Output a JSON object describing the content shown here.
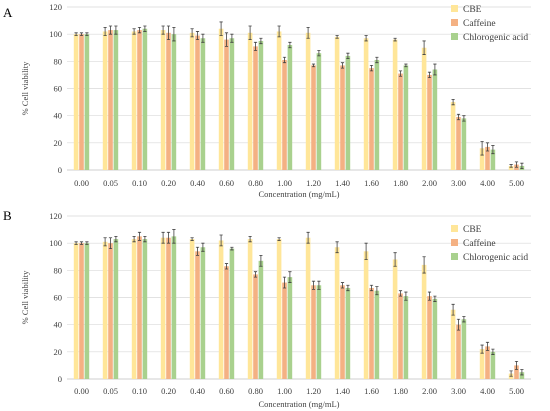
{
  "colors": {
    "CBE": "#ffe699",
    "Caffeine": "#f4b183",
    "Chlorogenic acid": "#a9d18e"
  },
  "chart_data": [
    {
      "panel_label": "A",
      "type": "bar",
      "xlabel": "Concentration (mg/mL)",
      "ylabel": "% Cell viability",
      "ylim": [
        0,
        120
      ],
      "yticks": [
        0,
        20,
        40,
        60,
        80,
        100,
        120
      ],
      "grid": true,
      "legend": "top-right",
      "categories": [
        "0.00",
        "0.05",
        "0.10",
        "0.20",
        "0.40",
        "0.60",
        "0.80",
        "1.00",
        "1.20",
        "1.40",
        "1.60",
        "1.80",
        "2.00",
        "3.00",
        "4.00",
        "5.00"
      ],
      "series": [
        {
          "name": "CBE",
          "values": [
            100,
            102,
            102,
            103,
            101,
            104,
            101,
            102,
            101,
            98,
            97,
            96,
            90,
            50,
            16,
            3
          ],
          "errors": [
            1,
            3,
            2,
            3,
            3,
            5,
            5,
            4,
            4,
            1,
            2,
            1,
            5,
            2,
            5,
            1
          ]
        },
        {
          "name": "Caffeine",
          "values": [
            100,
            103,
            103,
            101,
            99,
            96,
            91,
            81,
            77,
            77,
            75,
            71,
            70,
            39,
            17,
            4
          ],
          "errors": [
            1,
            3,
            2,
            5,
            3,
            5,
            3,
            2,
            1,
            2,
            2,
            2,
            2,
            2,
            3,
            2
          ]
        },
        {
          "name": "Chlorogenic acid",
          "values": [
            100,
            103,
            104,
            100,
            97,
            97,
            95,
            92,
            86,
            84,
            81,
            77,
            74,
            38,
            15,
            3
          ],
          "errors": [
            1,
            3,
            2,
            5,
            3,
            3,
            2,
            2,
            2,
            2,
            2,
            1,
            4,
            2,
            3,
            2
          ]
        }
      ]
    },
    {
      "panel_label": "B",
      "type": "bar",
      "xlabel": "Concentration (mg/mL)",
      "ylabel": "% Cell viability",
      "ylim": [
        0,
        120
      ],
      "yticks": [
        0,
        20,
        40,
        60,
        80,
        100,
        120
      ],
      "grid": true,
      "legend": "top-right",
      "categories": [
        "0.00",
        "0.05",
        "0.10",
        "0.20",
        "0.40",
        "0.60",
        "0.80",
        "1.00",
        "1.20",
        "1.40",
        "1.60",
        "1.80",
        "2.00",
        "3.00",
        "4.00",
        "5.00"
      ],
      "series": [
        {
          "name": "CBE",
          "values": [
            100,
            101,
            103,
            104,
            103,
            102,
            103,
            103,
            104,
            97,
            94,
            88,
            84,
            51,
            22,
            4
          ],
          "errors": [
            1,
            3,
            2,
            4,
            1,
            4,
            2,
            1,
            4,
            4,
            6,
            5,
            6,
            4,
            3,
            2
          ]
        },
        {
          "name": "Caffeine",
          "values": [
            100,
            100,
            105,
            104,
            94,
            83,
            77,
            71,
            69,
            69,
            67,
            63,
            61,
            40,
            24,
            10
          ],
          "errors": [
            1,
            4,
            3,
            4,
            3,
            2,
            2,
            4,
            3,
            2,
            2,
            2,
            3,
            4,
            3,
            3
          ]
        },
        {
          "name": "Chlorogenic acid",
          "values": [
            100,
            103,
            103,
            105,
            97,
            96,
            87,
            75,
            69,
            67,
            65,
            61,
            59,
            44,
            20,
            5
          ],
          "errors": [
            1,
            2,
            2,
            5,
            3,
            1,
            4,
            4,
            3,
            2,
            3,
            3,
            2,
            2,
            2,
            2
          ]
        }
      ]
    }
  ]
}
